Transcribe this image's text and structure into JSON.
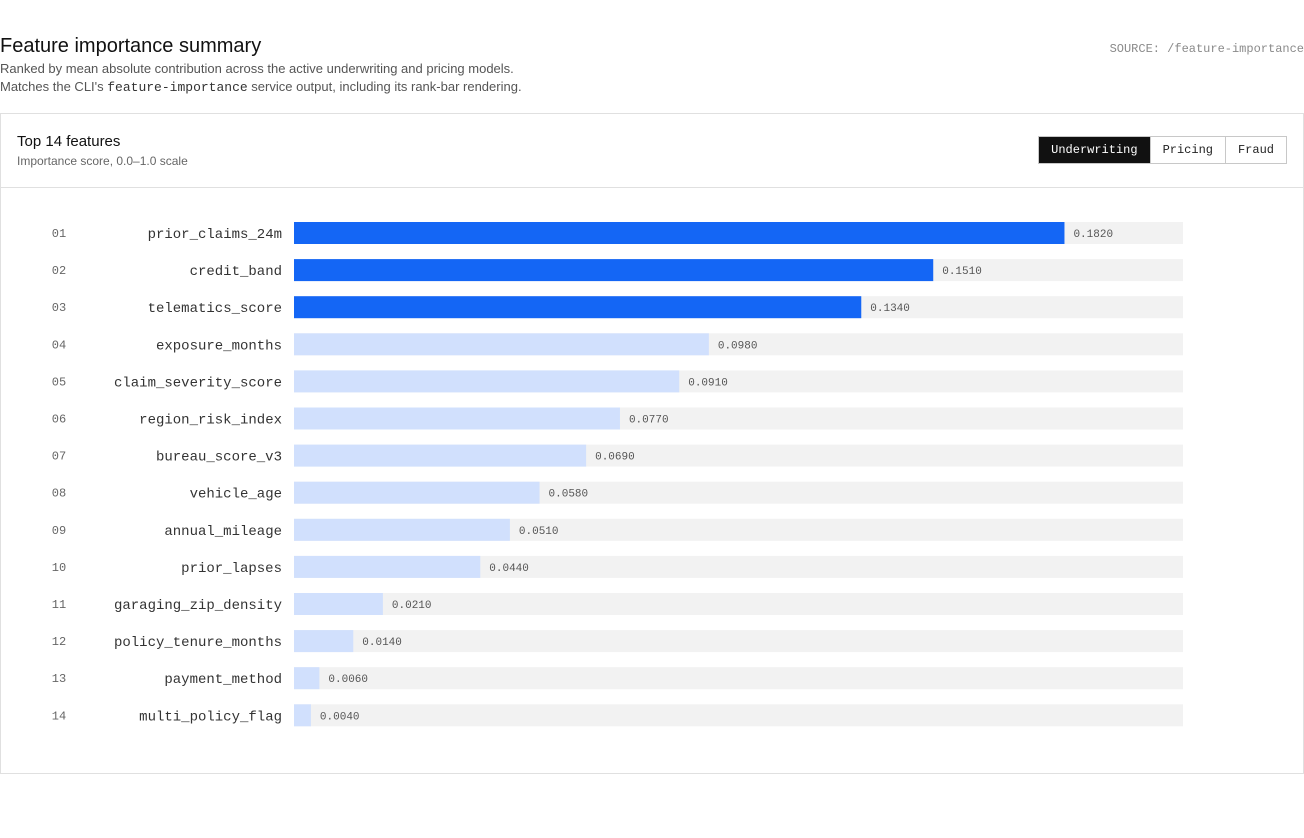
{
  "header": {
    "title": "Feature importance summary",
    "subtitle_line1": "Ranked by mean absolute contribution across the active underwriting and pricing models.",
    "subtitle_line2_prefix": "Matches the CLI's ",
    "subtitle_line2_code": "feature-importance",
    "subtitle_line2_suffix": " service output, including its rank-bar rendering.",
    "source": "SOURCE: /feature-importance"
  },
  "card": {
    "title": "Top 14 features",
    "subtitle": "Importance score, 0.0–1.0 scale",
    "tabs": [
      {
        "label": "Underwriting",
        "active": true
      },
      {
        "label": "Pricing",
        "active": false
      },
      {
        "label": "Fraud",
        "active": false
      }
    ]
  },
  "colors": {
    "highlight": "#1466f5",
    "normal": "#d1e0fd",
    "track": "#f2f2f2"
  },
  "chart_data": {
    "type": "bar",
    "orientation": "horizontal",
    "xlim": [
      0,
      0.21
    ],
    "highlight_top_n": 3,
    "value_format": "4 decimals",
    "ranks": [
      "01",
      "02",
      "03",
      "04",
      "05",
      "06",
      "07",
      "08",
      "09",
      "10",
      "11",
      "12",
      "13",
      "14"
    ],
    "categories": [
      "prior_claims_24m",
      "credit_band",
      "telematics_score",
      "exposure_months",
      "claim_severity_score",
      "region_risk_index",
      "bureau_score_v3",
      "vehicle_age",
      "annual_mileage",
      "prior_lapses",
      "garaging_zip_density",
      "policy_tenure_months",
      "payment_method",
      "multi_policy_flag"
    ],
    "values": [
      0.182,
      0.151,
      0.134,
      0.098,
      0.091,
      0.077,
      0.069,
      0.058,
      0.051,
      0.044,
      0.021,
      0.014,
      0.006,
      0.004
    ]
  }
}
